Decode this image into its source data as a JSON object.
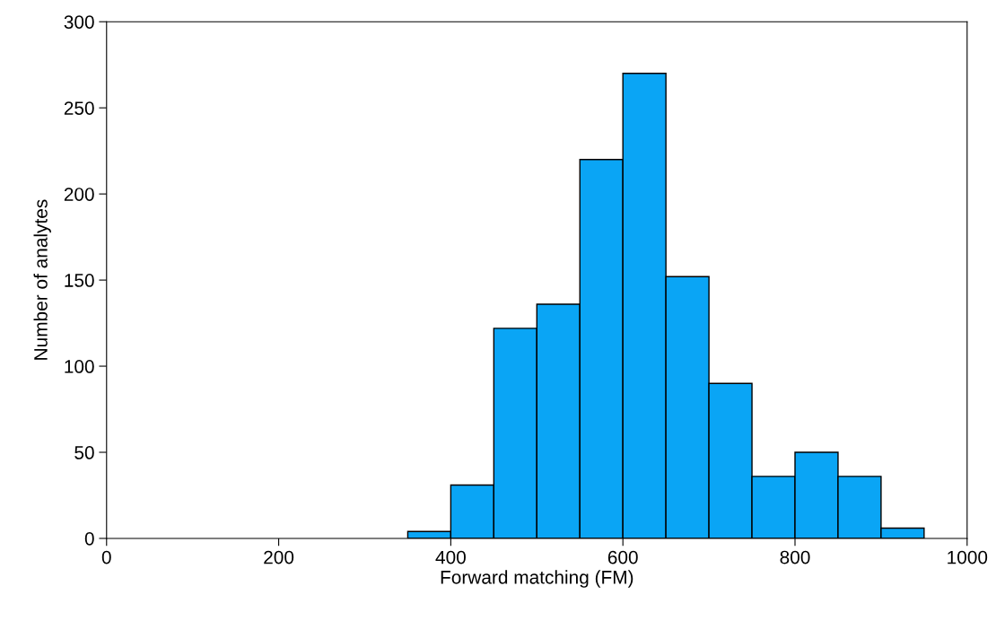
{
  "chart_data": {
    "type": "histogram",
    "xlabel": "Forward matching (FM)",
    "ylabel": "Number of analytes",
    "bins": [
      350,
      400,
      450,
      500,
      550,
      600,
      650,
      700,
      750,
      800,
      850,
      900,
      950
    ],
    "values": [
      4,
      31,
      122,
      136,
      220,
      270,
      152,
      90,
      36,
      50,
      36,
      6
    ],
    "color": "#0aa5f5",
    "xlim": [
      0,
      1000
    ],
    "xticks": [
      0,
      200,
      400,
      600,
      800,
      1000
    ],
    "ylim": [
      0,
      300
    ],
    "yticks": [
      0,
      50,
      100,
      150,
      200,
      250,
      300
    ],
    "grid": false
  }
}
